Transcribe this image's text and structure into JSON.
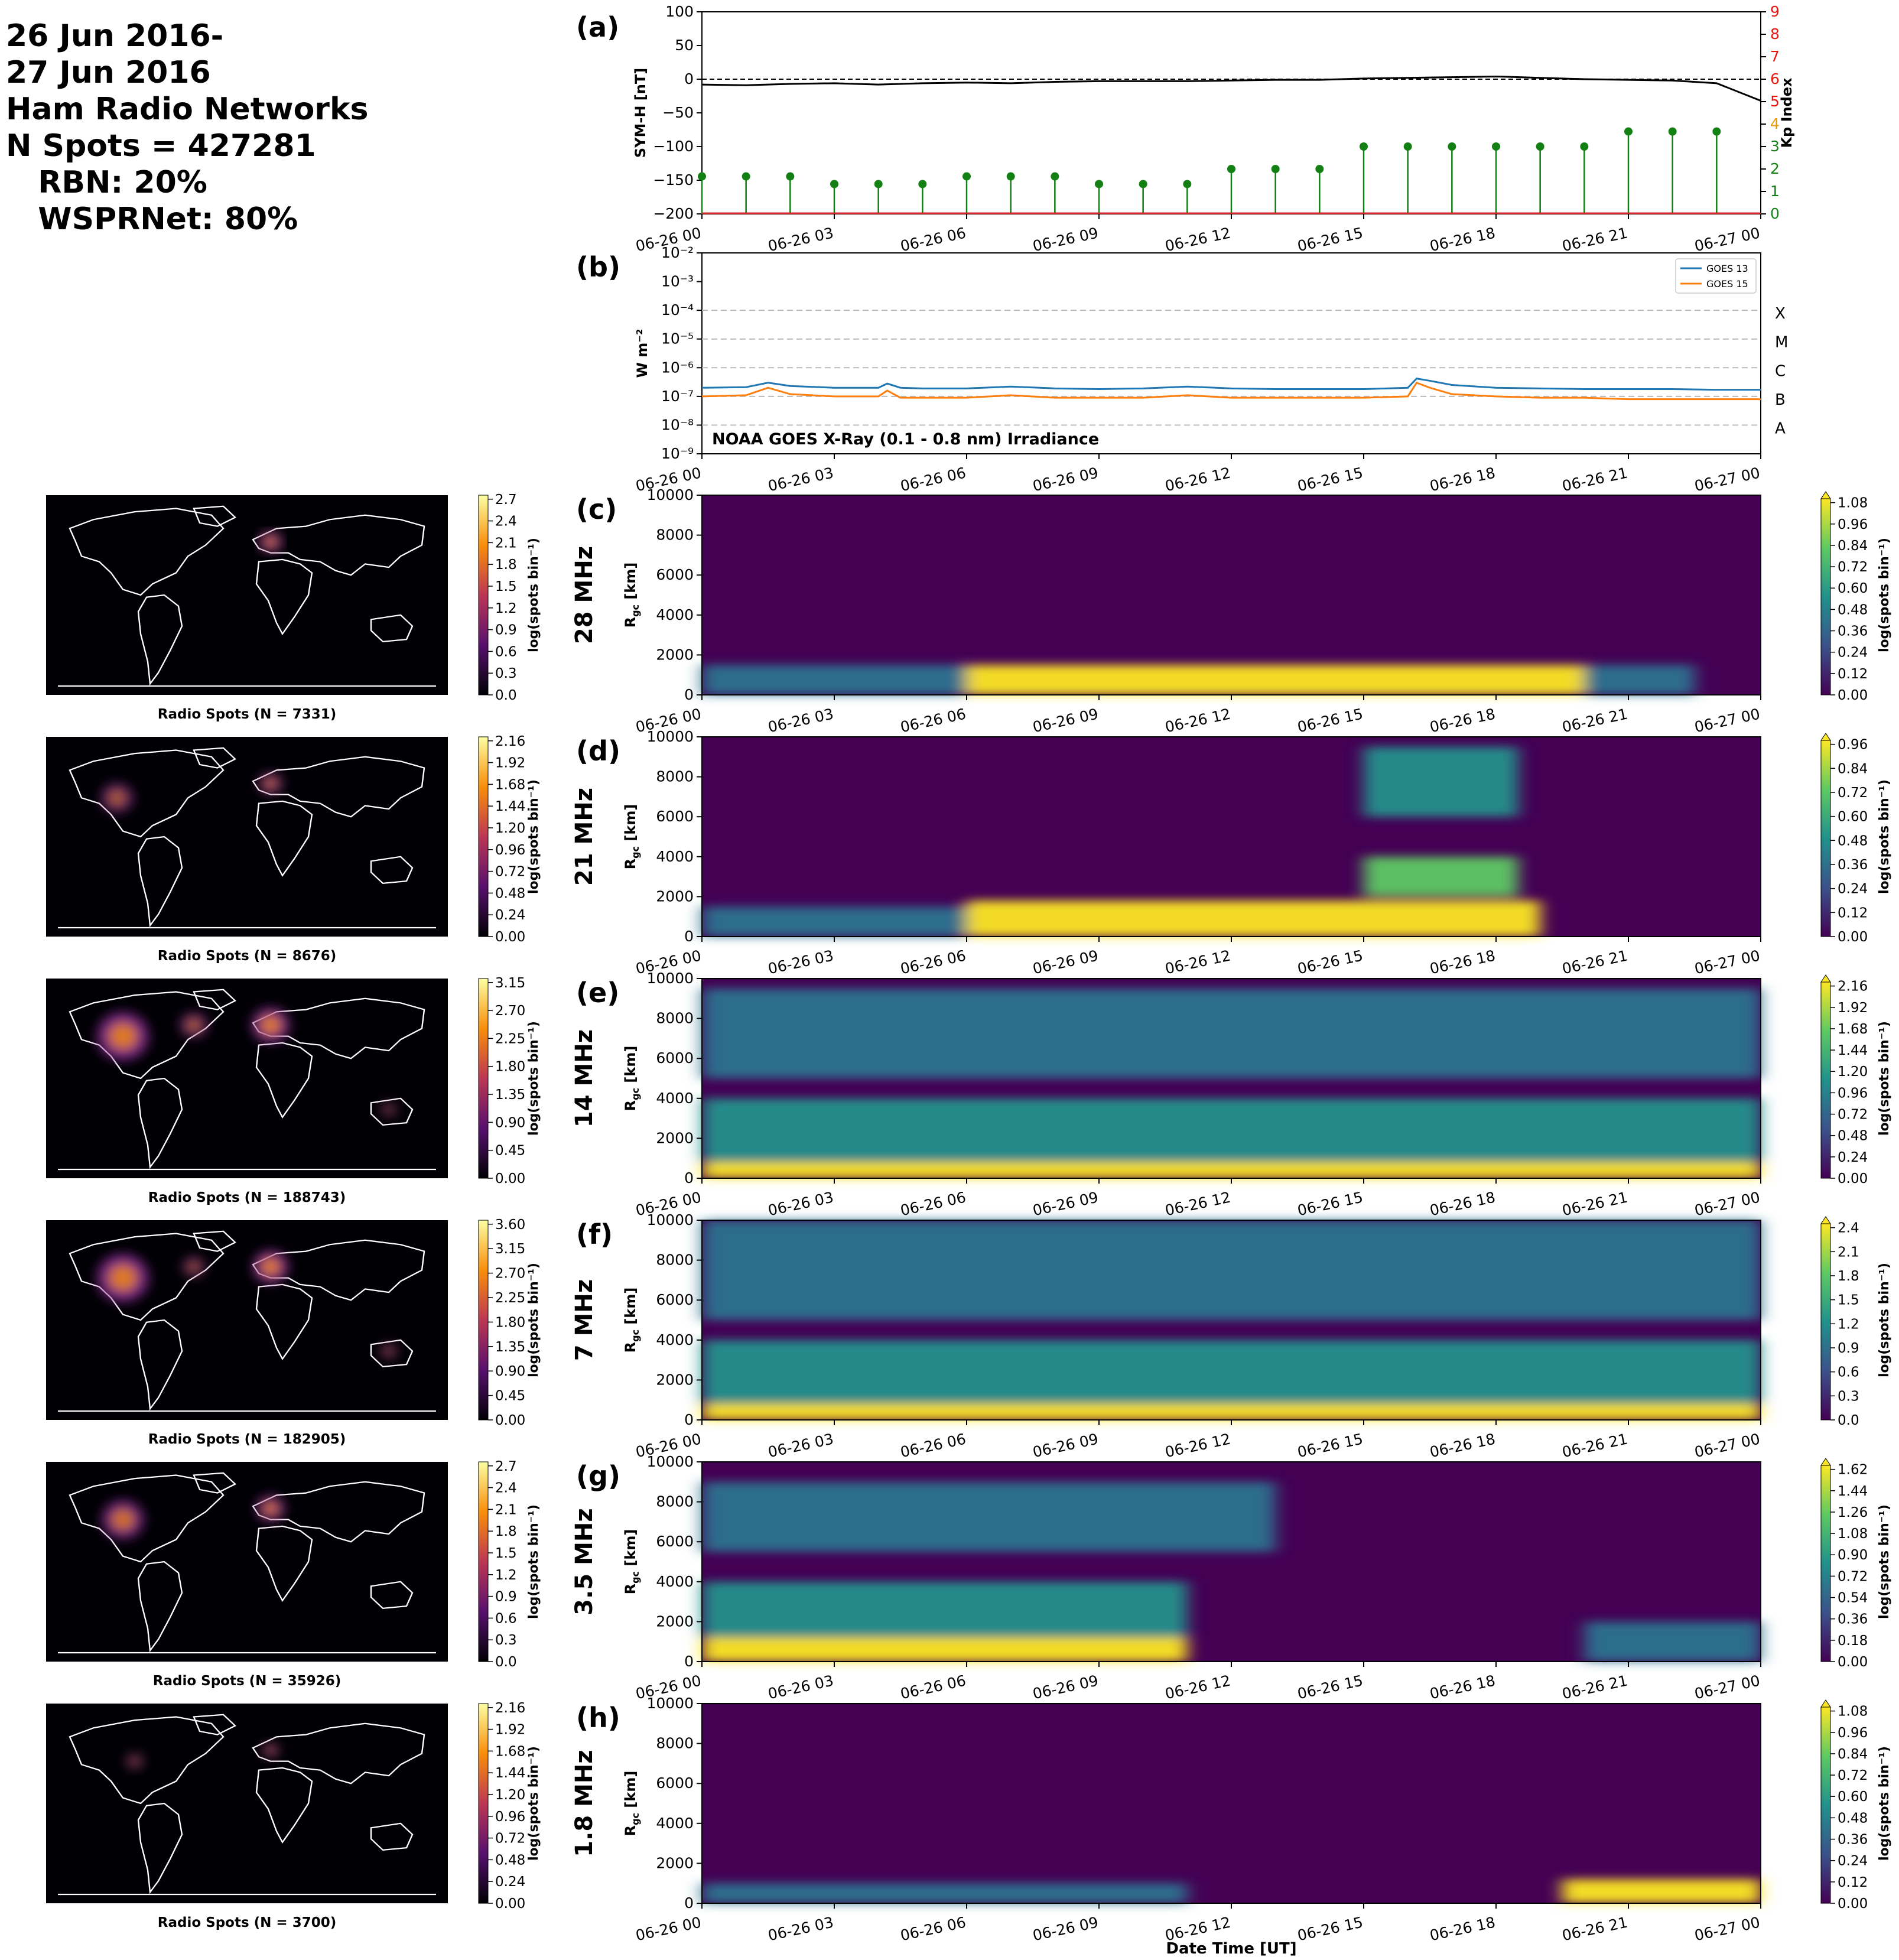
{
  "header": {
    "lines": [
      "26 Jun 2016-",
      "27 Jun 2016",
      "Ham Radio Networks",
      "N Spots = 427281",
      "   RBN: 20%",
      "   WSPRNet: 80%"
    ]
  },
  "colors": {
    "symh": "#000000",
    "kp": "#138013",
    "goes13": "#1f77b4",
    "goes15": "#ff7f0e",
    "kp_axis": "#e8140c"
  },
  "time_ticks": [
    "06-26 00",
    "06-26 03",
    "06-26 06",
    "06-26 09",
    "06-26 12",
    "06-26 15",
    "06-26 18",
    "06-26 21",
    "06-27 00"
  ],
  "panel_a": {
    "letter": "(a)",
    "ylabel": "SYM-H [nT]",
    "y2label": "Kp Index",
    "yticks": [
      "100",
      "50",
      "0",
      "−50",
      "−100",
      "−150",
      "−200"
    ],
    "y2ticks": [
      "9",
      "8",
      "7",
      "6",
      "5",
      "4",
      "3",
      "2",
      "1",
      "0"
    ],
    "ylim": [
      -200,
      100
    ],
    "y2lim": [
      0,
      9
    ]
  },
  "panel_b": {
    "letter": "(b)",
    "ylabel": "W m⁻²",
    "yticks": [
      "10⁻²",
      "10⁻³",
      "10⁻⁴",
      "10⁻⁵",
      "10⁻⁶",
      "10⁻⁷",
      "10⁻⁸",
      "10⁻⁹"
    ],
    "classes": [
      "X",
      "M",
      "C",
      "B",
      "A"
    ],
    "annotation": "NOAA GOES X-Ray (0.1 - 0.8 nm) Irradiance",
    "legend": [
      "GOES 13",
      "GOES 15"
    ],
    "yscale": "log",
    "ylim": [
      1e-09,
      0.01
    ]
  },
  "maps_common": {
    "cbar_label": "log(spots bin⁻¹)"
  },
  "rgc_common": {
    "ylabel": "R",
    "ylabel_sub": "gc",
    "ylabel_unit": " [km]",
    "yticks": [
      "10000",
      "8000",
      "6000",
      "4000",
      "2000",
      "0"
    ],
    "cbar_label": "log(spots bin⁻¹)",
    "xlabel": "Date Time [UT]"
  },
  "bands": [
    {
      "letter": "(c)",
      "freq": "28 MHz",
      "map_title": "Radio Spots (N = 7331)",
      "map_ticks": [
        "2.7",
        "2.4",
        "2.1",
        "1.8",
        "1.5",
        "1.2",
        "0.9",
        "0.6",
        "0.3",
        "0.0"
      ],
      "rgc_ticks": [
        "1.08",
        "0.96",
        "0.84",
        "0.72",
        "0.60",
        "0.48",
        "0.36",
        "0.24",
        "0.12",
        "0.00"
      ]
    },
    {
      "letter": "(d)",
      "freq": "21 MHz",
      "map_title": "Radio Spots (N = 8676)",
      "map_ticks": [
        "2.16",
        "1.92",
        "1.68",
        "1.44",
        "1.20",
        "0.96",
        "0.72",
        "0.48",
        "0.24",
        "0.00"
      ],
      "rgc_ticks": [
        "0.96",
        "0.84",
        "0.72",
        "0.60",
        "0.48",
        "0.36",
        "0.24",
        "0.12",
        "0.00"
      ]
    },
    {
      "letter": "(e)",
      "freq": "14 MHz",
      "map_title": "Radio Spots (N = 188743)",
      "map_ticks": [
        "3.15",
        "2.70",
        "2.25",
        "1.80",
        "1.35",
        "0.90",
        "0.45",
        "0.00"
      ],
      "rgc_ticks": [
        "2.16",
        "1.92",
        "1.68",
        "1.44",
        "1.20",
        "0.96",
        "0.72",
        "0.48",
        "0.24",
        "0.00"
      ]
    },
    {
      "letter": "(f)",
      "freq": "7 MHz",
      "map_title": "Radio Spots (N = 182905)",
      "map_ticks": [
        "3.60",
        "3.15",
        "2.70",
        "2.25",
        "1.80",
        "1.35",
        "0.90",
        "0.45",
        "0.00"
      ],
      "rgc_ticks": [
        "2.4",
        "2.1",
        "1.8",
        "1.5",
        "1.2",
        "0.9",
        "0.6",
        "0.3",
        "0.0"
      ]
    },
    {
      "letter": "(g)",
      "freq": "3.5 MHz",
      "map_title": "Radio Spots (N = 35926)",
      "map_ticks": [
        "2.7",
        "2.4",
        "2.1",
        "1.8",
        "1.5",
        "1.2",
        "0.9",
        "0.6",
        "0.3",
        "0.0"
      ],
      "rgc_ticks": [
        "1.62",
        "1.44",
        "1.26",
        "1.08",
        "0.90",
        "0.72",
        "0.54",
        "0.36",
        "0.18",
        "0.00"
      ]
    },
    {
      "letter": "(h)",
      "freq": "1.8 MHz",
      "map_title": "Radio Spots (N = 3700)",
      "map_ticks": [
        "2.16",
        "1.92",
        "1.68",
        "1.44",
        "1.20",
        "0.96",
        "0.72",
        "0.48",
        "0.24",
        "0.00"
      ],
      "rgc_ticks": [
        "1.08",
        "0.96",
        "0.84",
        "0.72",
        "0.60",
        "0.48",
        "0.36",
        "0.24",
        "0.12",
        "0.00"
      ]
    }
  ],
  "chart_data": [
    {
      "type": "line",
      "title": "(a)",
      "x_unit": "hours since 06-26 00 UT",
      "series": [
        {
          "name": "SYM-H",
          "x": [
            0,
            1,
            2,
            3,
            4,
            5,
            6,
            7,
            8,
            9,
            10,
            11,
            12,
            13,
            14,
            15,
            16,
            17,
            18,
            19,
            20,
            21,
            22,
            23,
            24
          ],
          "values": [
            -8,
            -9,
            -7,
            -6,
            -8,
            -6,
            -5,
            -6,
            -4,
            -3,
            -3,
            -3,
            -2,
            -1,
            -1,
            1,
            2,
            3,
            4,
            2,
            0,
            -1,
            -2,
            -6,
            -32
          ]
        }
      ],
      "ylim": [
        -200,
        100
      ],
      "ylabel": "SYM-H [nT]"
    },
    {
      "type": "scatter",
      "title": "(a)",
      "series": [
        {
          "name": "Kp Index",
          "x": [
            0,
            1,
            2,
            3,
            4,
            5,
            6,
            7,
            8,
            9,
            10,
            11,
            12,
            13,
            14,
            15,
            16,
            17,
            18,
            19,
            20,
            21,
            22,
            23
          ],
          "values": [
            1.67,
            1.67,
            1.67,
            1.33,
            1.33,
            1.33,
            1.67,
            1.67,
            1.67,
            1.33,
            1.33,
            1.33,
            2.0,
            2.0,
            2.0,
            3.0,
            3.0,
            3.0,
            3.0,
            3.0,
            3.0,
            3.67,
            3.67,
            3.67
          ]
        }
      ],
      "ylim": [
        0,
        9
      ],
      "ylabel": "Kp Index"
    },
    {
      "type": "line",
      "title": "(b)",
      "series": [
        {
          "name": "GOES 13",
          "x": [
            0,
            1,
            1.5,
            2,
            3,
            4,
            4.2,
            4.5,
            5,
            6,
            7,
            8,
            9,
            10,
            11,
            12,
            13,
            14,
            15,
            16,
            16.2,
            16.5,
            17,
            18,
            19,
            20,
            21,
            22,
            23,
            24
          ],
          "values": [
            2e-07,
            2.1e-07,
            3e-07,
            2.3e-07,
            2e-07,
            2e-07,
            2.8e-07,
            2e-07,
            1.9e-07,
            1.9e-07,
            2.2e-07,
            1.9e-07,
            1.8e-07,
            1.9e-07,
            2.2e-07,
            1.9e-07,
            1.8e-07,
            1.8e-07,
            1.8e-07,
            2e-07,
            4.2e-07,
            3.5e-07,
            2.5e-07,
            2e-07,
            1.9e-07,
            1.8e-07,
            1.8e-07,
            1.8e-07,
            1.7e-07,
            1.7e-07
          ]
        },
        {
          "name": "GOES 15",
          "x": [
            0,
            1,
            1.5,
            2,
            3,
            4,
            4.2,
            4.5,
            5,
            6,
            7,
            8,
            9,
            10,
            11,
            12,
            13,
            14,
            15,
            16,
            16.2,
            16.5,
            17,
            18,
            19,
            20,
            21,
            22,
            23,
            24
          ],
          "values": [
            1e-07,
            1.1e-07,
            2e-07,
            1.2e-07,
            1e-07,
            1e-07,
            1.6e-07,
            9e-08,
            9e-08,
            9e-08,
            1.1e-07,
            9e-08,
            9e-08,
            9e-08,
            1.1e-07,
            9e-08,
            9e-08,
            9e-08,
            9e-08,
            1e-07,
            3e-07,
            2e-07,
            1.2e-07,
            1e-07,
            9e-08,
            9e-08,
            8e-08,
            8e-08,
            8e-08,
            8e-08
          ]
        }
      ],
      "yscale": "log",
      "ylim": [
        1e-09,
        0.01
      ],
      "ylabel": "W m⁻²"
    },
    {
      "type": "heatmap",
      "title": "(c) 28 MHz",
      "x": [
        0,
        3,
        6,
        9,
        12,
        15,
        18,
        21,
        24
      ],
      "y_km": [
        0,
        2000,
        4000,
        6000,
        8000,
        10000
      ],
      "bands_km": [
        {
          "y0": 0,
          "y1": 1500,
          "t0": 6,
          "t1": 20,
          "value": 1.08
        },
        {
          "y0": 0,
          "y1": 1500,
          "t0": 0,
          "t1": 6,
          "value": 0.35
        },
        {
          "y0": 0,
          "y1": 1500,
          "t0": 20,
          "t1": 22.5,
          "value": 0.35
        }
      ],
      "zlim": [
        0,
        1.08
      ]
    },
    {
      "type": "heatmap",
      "title": "(d) 21 MHz",
      "bands_km": [
        {
          "y0": 0,
          "y1": 1800,
          "t0": 6,
          "t1": 19,
          "value": 0.96
        },
        {
          "y0": 0,
          "y1": 1500,
          "t0": 0,
          "t1": 6,
          "value": 0.3
        },
        {
          "y0": 2000,
          "y1": 4000,
          "t0": 15,
          "t1": 18.5,
          "value": 0.6
        },
        {
          "y0": 6000,
          "y1": 9500,
          "t0": 15,
          "t1": 18.5,
          "value": 0.5
        }
      ],
      "zlim": [
        0,
        0.96
      ]
    },
    {
      "type": "heatmap",
      "title": "(e) 14 MHz",
      "bands_km": [
        {
          "y0": 0,
          "y1": 800,
          "t0": 0,
          "t1": 24,
          "value": 1.9
        },
        {
          "y0": 800,
          "y1": 4000,
          "t0": 0,
          "t1": 24,
          "value": 1.2
        },
        {
          "y0": 5000,
          "y1": 9500,
          "t0": 0,
          "t1": 24,
          "value": 0.7
        }
      ],
      "zlim": [
        0,
        2.16
      ]
    },
    {
      "type": "heatmap",
      "title": "(f) 7 MHz",
      "bands_km": [
        {
          "y0": 0,
          "y1": 800,
          "t0": 0,
          "t1": 24,
          "value": 2.2
        },
        {
          "y0": 800,
          "y1": 4000,
          "t0": 0,
          "t1": 24,
          "value": 1.3
        },
        {
          "y0": 5000,
          "y1": 10000,
          "t0": 0,
          "t1": 24,
          "value": 0.8
        }
      ],
      "zlim": [
        0,
        2.4
      ]
    },
    {
      "type": "heatmap",
      "title": "(g) 3.5 MHz",
      "bands_km": [
        {
          "y0": 0,
          "y1": 1200,
          "t0": 0,
          "t1": 11,
          "value": 1.5
        },
        {
          "y0": 1200,
          "y1": 4000,
          "t0": 0,
          "t1": 11,
          "value": 0.8
        },
        {
          "y0": 5500,
          "y1": 9000,
          "t0": 0,
          "t1": 13,
          "value": 0.5
        },
        {
          "y0": 0,
          "y1": 2000,
          "t0": 20,
          "t1": 24,
          "value": 0.6
        }
      ],
      "zlim": [
        0,
        1.62
      ]
    },
    {
      "type": "heatmap",
      "title": "(h) 1.8 MHz",
      "bands_km": [
        {
          "y0": 0,
          "y1": 1000,
          "t0": 0,
          "t1": 11,
          "value": 0.35
        },
        {
          "y0": 0,
          "y1": 1200,
          "t0": 19.5,
          "t1": 24,
          "value": 0.9
        }
      ],
      "zlim": [
        0,
        1.08
      ]
    }
  ]
}
